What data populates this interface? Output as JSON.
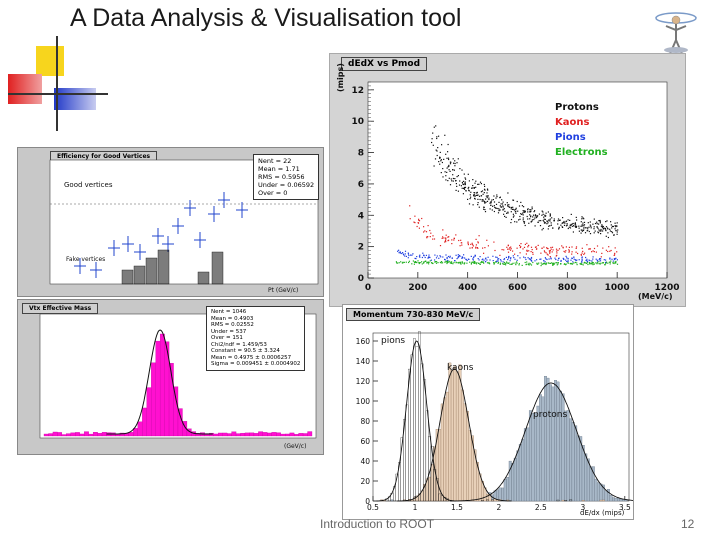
{
  "slide": {
    "title": "A Data Analysis & Visualisation tool",
    "footer_text": "Introduction to ROOT",
    "page_number": "12"
  },
  "decor": {
    "logo": "root-logo-figure",
    "squares": [
      "#f7d51d",
      "#e02020",
      "#2038c8"
    ]
  },
  "top_left_plot": {
    "header": "Efficiency for Good Vertices",
    "label_good": "Good vertices",
    "label_fake": "Fake vertices",
    "xlabel": "Pt (GeV/c)",
    "stats": [
      "Nent = 22",
      "Mean = 1.71",
      "RMS = 0.5956",
      "Under = 0.06592",
      "Over = 0"
    ]
  },
  "bottom_left_plot": {
    "header": "Vtx Effective Mass",
    "xlabel": "(GeV/c)",
    "stats": [
      "Nent = 1046",
      "Mean = 0.4903",
      "RMS = 0.02552",
      "Under = 537",
      "Over = 151",
      "Chi2/ndf = 1.459/53",
      "Constant = 90.5 ± 3.324",
      "Mean = 0.4975 ± 0.0006257",
      "Sigma = 0.009451 ± 0.0004902"
    ]
  },
  "scatter_plot": {
    "header": "dEdX vs Pmod",
    "ylabel": "(mips)",
    "xlabel": "(MeV/c)",
    "x_ticks": [
      "0",
      "200",
      "400",
      "600",
      "800",
      "1000",
      "1200"
    ],
    "y_ticks": [
      "0",
      "2",
      "4",
      "6",
      "8",
      "10",
      "12"
    ],
    "legend": [
      {
        "label": "Protons",
        "color": "#111111"
      },
      {
        "label": "Kaons",
        "color": "#e02020"
      },
      {
        "label": "Pions",
        "color": "#2040e0"
      },
      {
        "label": "Electrons",
        "color": "#20b020"
      }
    ]
  },
  "momentum_plot": {
    "header": "Momentum 730-830 MeV/c",
    "xlabel": "dE/dx (mips)",
    "x_ticks": [
      "0.5",
      "1",
      "1.5",
      "2",
      "2.5",
      "3",
      "3.5"
    ],
    "y_ticks": [
      "0",
      "20",
      "40",
      "60",
      "80",
      "100",
      "120",
      "140",
      "160"
    ],
    "labels": {
      "pions": "pions",
      "kaons": "kaons",
      "protons": "protons"
    }
  }
}
